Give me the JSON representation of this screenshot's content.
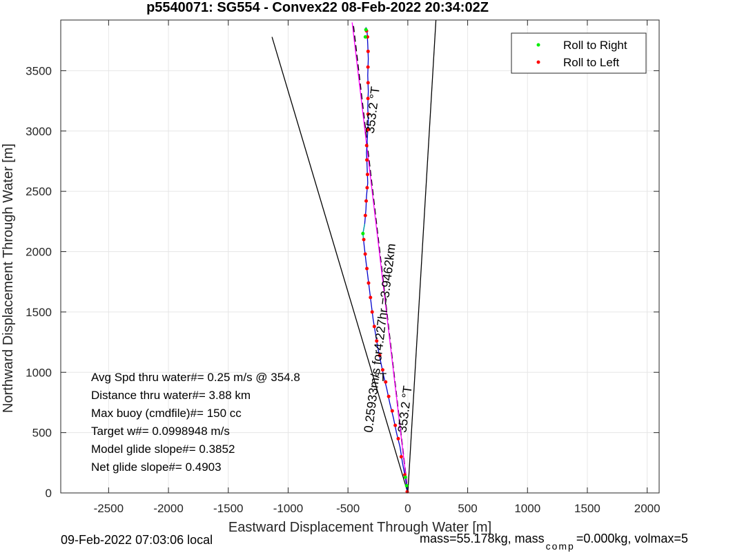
{
  "title": "p5540071: SG554 - Convex22 08-Feb-2022 20:34:02Z",
  "footer": {
    "left": "09-Feb-2022 07:03:06 local",
    "right_a": "mass=55.178kg, mass",
    "right_sub": "comp",
    "right_b": "=0.000kg, volmax=5"
  },
  "annotations": [
    "Avg Spd thru water#=  0.25 m/s @ 354.8",
    "Distance thru water#=  3.88 km",
    "Max buoy (cmdfile)#= 150 cc",
    "Target w#= 0.0998948 m/s",
    "Model glide slope#= 0.3852",
    "Net glide slope#= 0.4903"
  ],
  "deg_T": "°T",
  "chart_data": {
    "type": "line",
    "xlabel": "Eastward Displacement Through Water [m]",
    "ylabel": "Northward Displacement Through Water [m]",
    "xlim": [
      -2900,
      2100
    ],
    "ylim": [
      0,
      3920
    ],
    "xticks": [
      -2500,
      -2000,
      -1500,
      -1000,
      -500,
      0,
      500,
      1000,
      1500,
      2000
    ],
    "yticks": [
      0,
      500,
      1000,
      1500,
      2000,
      2500,
      3000,
      3500
    ],
    "grid": true,
    "legend_position": "top-right",
    "legend": [
      {
        "label": "Roll to Right",
        "color": "#00ee00"
      },
      {
        "label": "Roll to Left",
        "color": "#ff0000"
      }
    ],
    "rotated_labels": [
      {
        "text": "353.2 °T",
        "x": -260,
        "y": 3170
      },
      {
        "text": "0.25933m/s for4.227hr =3.9462km",
        "x": -200,
        "y": 1280
      },
      {
        "text": "353.2 °T",
        "x": 10,
        "y": 690
      }
    ],
    "cone_lines": [
      {
        "name": "cone-left",
        "color": "#000000",
        "points": [
          [
            0,
            0
          ],
          [
            -1135,
            3780
          ]
        ]
      },
      {
        "name": "cone-right",
        "color": "#000000",
        "points": [
          [
            0,
            0
          ],
          [
            235,
            3920
          ]
        ]
      },
      {
        "name": "heading-dashed",
        "color": "#000000",
        "dash": true,
        "points": [
          [
            0,
            0
          ],
          [
            -455,
            3870
          ]
        ]
      },
      {
        "name": "heading-magenta",
        "color": "#ff00ff",
        "points": [
          [
            0,
            0
          ],
          [
            -465,
            3900
          ]
        ]
      }
    ],
    "series": [
      {
        "name": "track",
        "color": "#0000cc",
        "points": [
          [
            0,
            0
          ],
          [
            -20,
            120
          ],
          [
            -45,
            250
          ],
          [
            -65,
            380
          ],
          [
            -95,
            500
          ],
          [
            -120,
            620
          ],
          [
            -150,
            740
          ],
          [
            -175,
            860
          ],
          [
            -200,
            960
          ],
          [
            -225,
            1080
          ],
          [
            -250,
            1200
          ],
          [
            -270,
            1320
          ],
          [
            -290,
            1440
          ],
          [
            -305,
            1560
          ],
          [
            -320,
            1680
          ],
          [
            -335,
            1800
          ],
          [
            -350,
            1920
          ],
          [
            -365,
            2050
          ],
          [
            -375,
            2150
          ],
          [
            -360,
            2230
          ],
          [
            -350,
            2350
          ],
          [
            -345,
            2460
          ],
          [
            -335,
            2570
          ],
          [
            -340,
            2700
          ],
          [
            -345,
            2820
          ],
          [
            -338,
            2950
          ],
          [
            -330,
            3080
          ],
          [
            -335,
            3200
          ],
          [
            -330,
            3330
          ],
          [
            -335,
            3460
          ],
          [
            -330,
            3600
          ],
          [
            -335,
            3720
          ],
          [
            -340,
            3820
          ],
          [
            -350,
            3860
          ]
        ]
      },
      {
        "name": "track-cyan-segment",
        "color": "#00aaaa",
        "points": [
          [
            -360,
            2230
          ],
          [
            -375,
            2150
          ],
          [
            -370,
            2100
          ]
        ]
      }
    ],
    "roll_right_points": [
      [
        -350,
        3840
      ],
      [
        -355,
        3780
      ],
      [
        -375,
        2150
      ],
      [
        -20,
        130
      ],
      [
        -10,
        60
      ]
    ],
    "roll_left_points": [
      [
        -5,
        10
      ],
      [
        -25,
        150
      ],
      [
        -55,
        300
      ],
      [
        -80,
        450
      ],
      [
        -105,
        560
      ],
      [
        -130,
        680
      ],
      [
        -160,
        800
      ],
      [
        -185,
        920
      ],
      [
        -210,
        1020
      ],
      [
        -235,
        1140
      ],
      [
        -260,
        1260
      ],
      [
        -280,
        1380
      ],
      [
        -298,
        1500
      ],
      [
        -312,
        1620
      ],
      [
        -328,
        1740
      ],
      [
        -342,
        1860
      ],
      [
        -356,
        1980
      ],
      [
        -368,
        2100
      ],
      [
        -355,
        2300
      ],
      [
        -348,
        2420
      ],
      [
        -340,
        2530
      ],
      [
        -337,
        2640
      ],
      [
        -342,
        2760
      ],
      [
        -344,
        2880
      ],
      [
        -335,
        3010
      ],
      [
        -332,
        3140
      ],
      [
        -333,
        3270
      ],
      [
        -332,
        3400
      ],
      [
        -333,
        3530
      ],
      [
        -332,
        3660
      ],
      [
        -337,
        3780
      ],
      [
        -345,
        3830
      ]
    ]
  }
}
